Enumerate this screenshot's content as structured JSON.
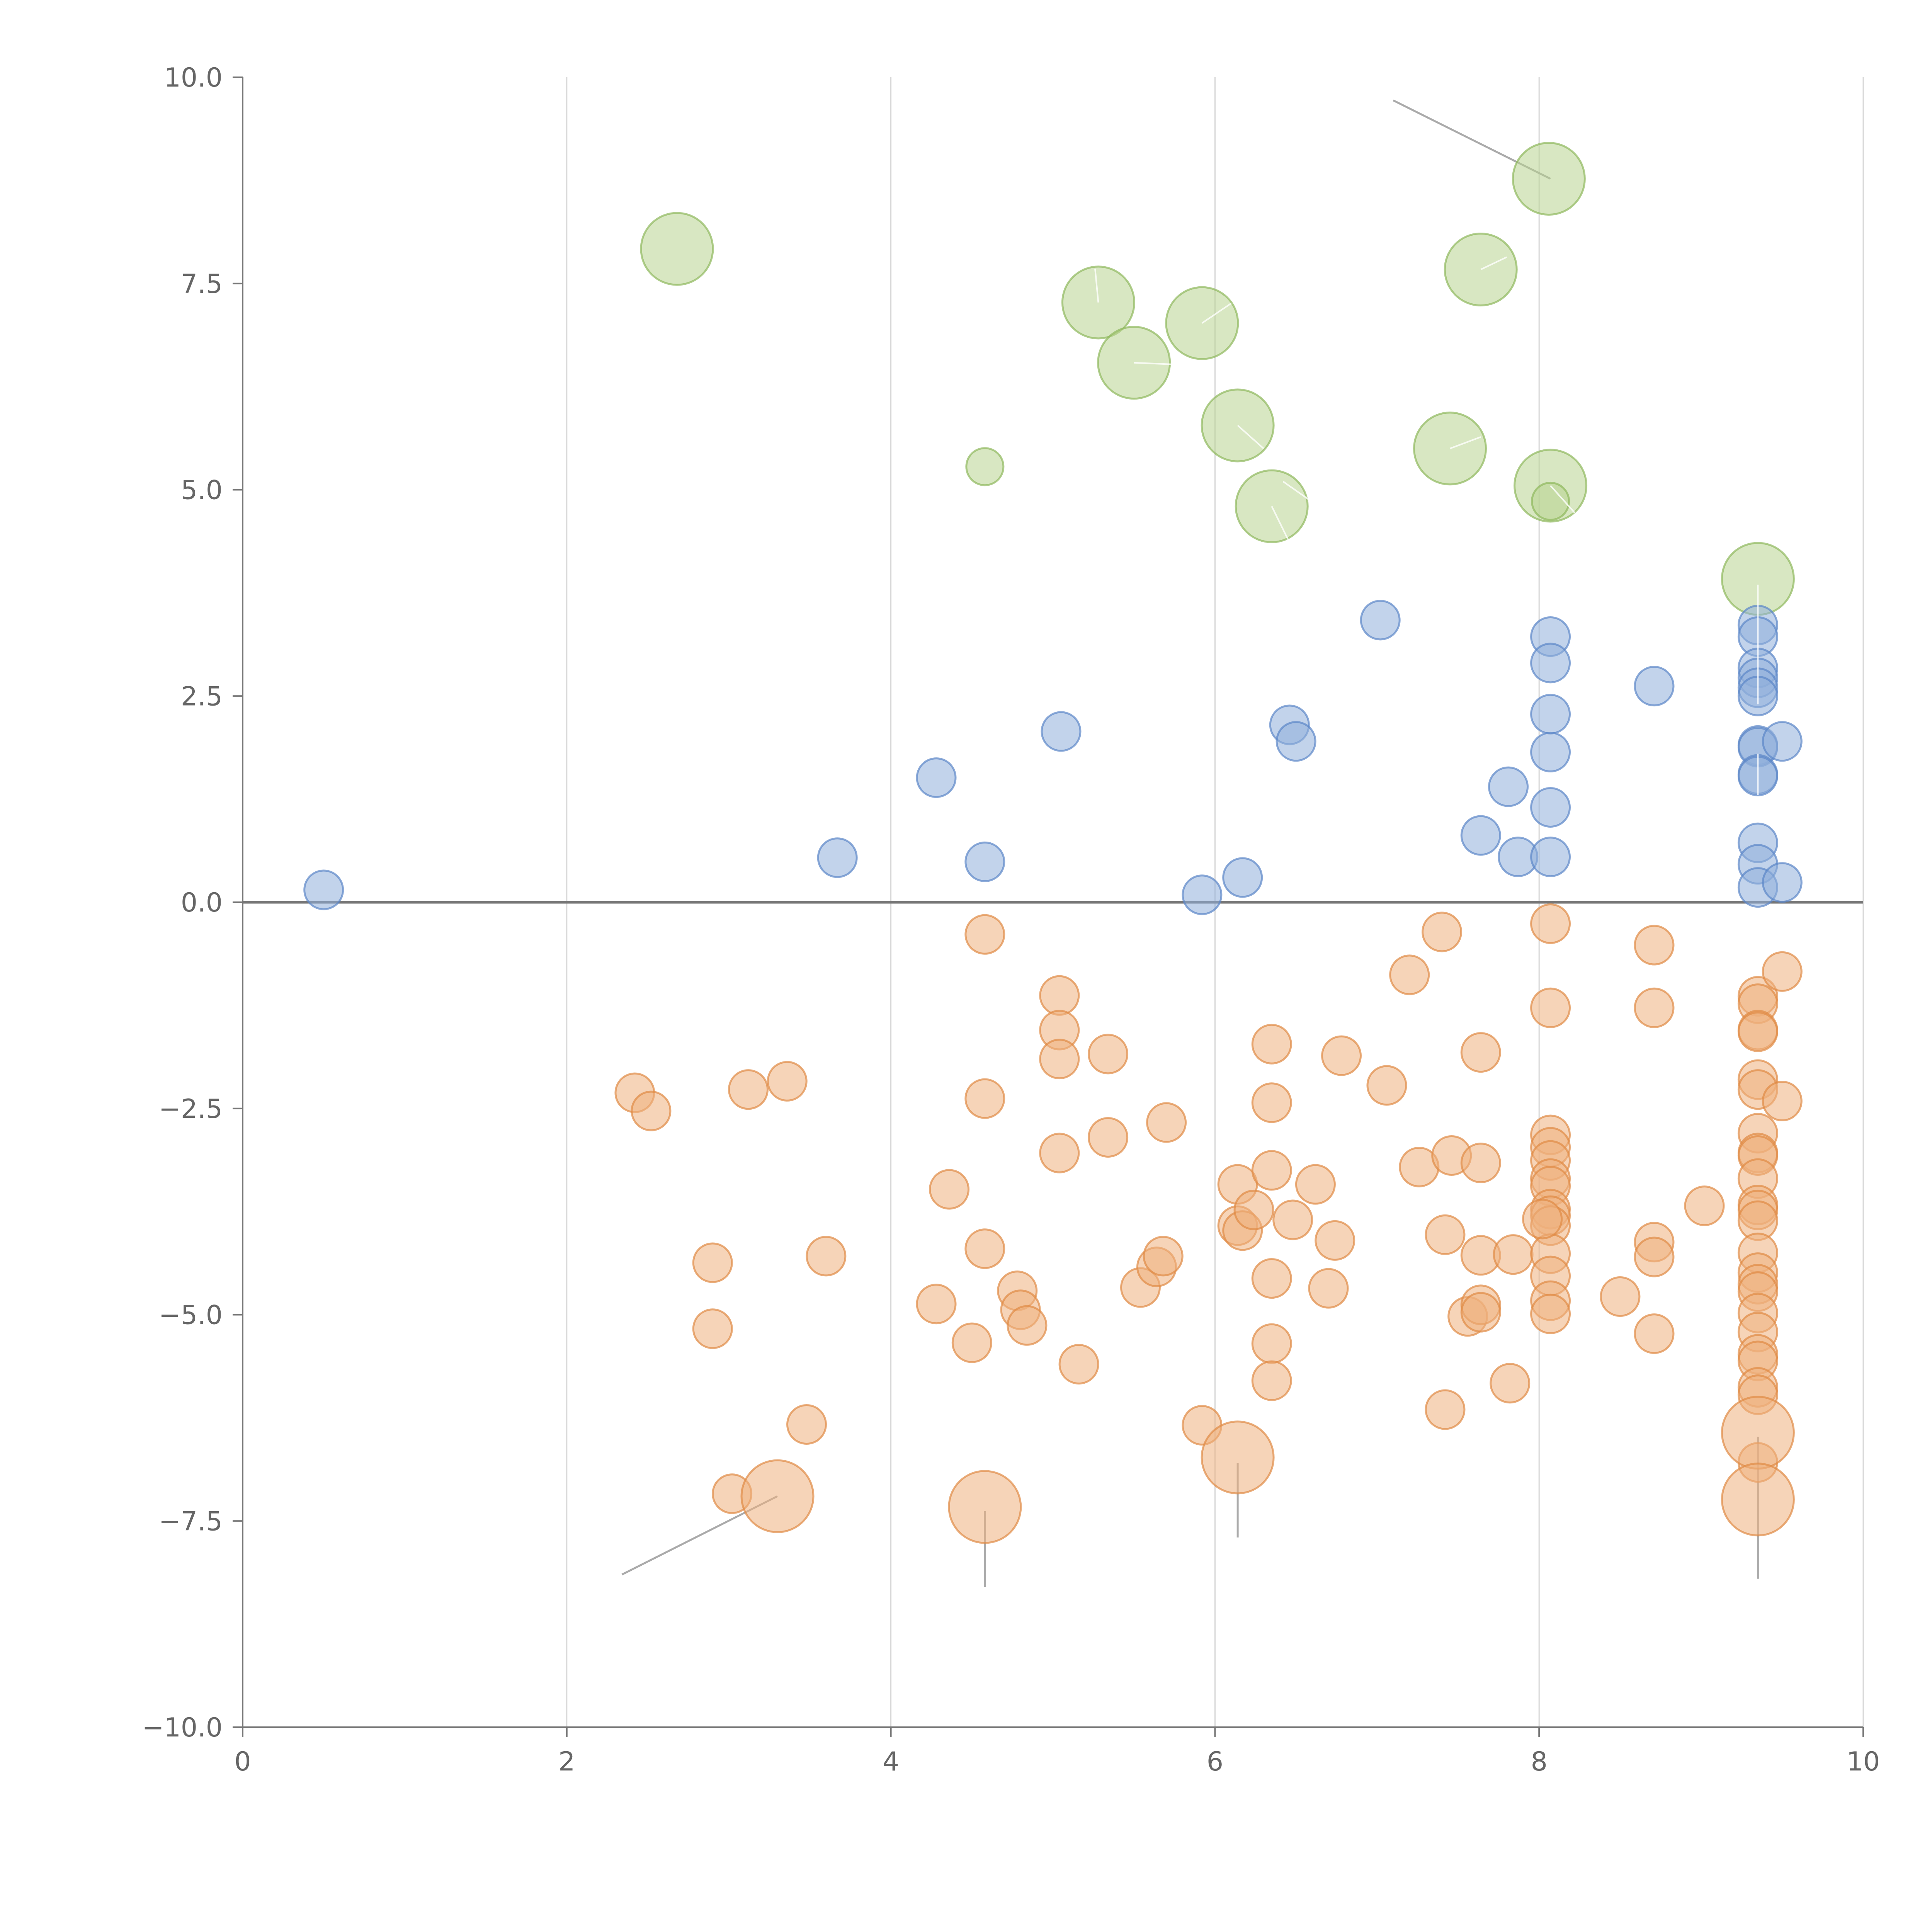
{
  "chart_data": {
    "type": "scatter",
    "title": "",
    "xlabel": "",
    "ylabel": "",
    "xlim": [
      0,
      10
    ],
    "ylim": [
      -10,
      10
    ],
    "x_ticks": [
      "0",
      "2",
      "4",
      "6",
      "8",
      "10"
    ],
    "y_ticks": [
      "10.0",
      "7.5",
      "5.0",
      "2.5",
      "0.0",
      "−2.5",
      "−5.0",
      "−7.5",
      "−10.0"
    ],
    "x_tick_values": [
      0,
      2,
      4,
      6,
      8,
      10
    ],
    "y_tick_values": [
      10,
      7.5,
      5,
      2.5,
      0,
      -2.5,
      -5,
      -7.5,
      -10
    ],
    "grid": "vertical",
    "reference_line_y": 0,
    "colors": {
      "green": "#b8d48f",
      "green_stroke": "#8fb85c",
      "blue": "#8fafdb",
      "blue_stroke": "#5b86c7",
      "orange": "#eeb07d",
      "orange_stroke": "#e08a45"
    },
    "series": [
      {
        "color": "green",
        "points": [
          {
            "x": 2.68,
            "y": 7.92,
            "size": "large"
          },
          {
            "x": 8.06,
            "y": 8.77,
            "size": "large"
          },
          {
            "x": 7.64,
            "y": 7.67,
            "size": "large"
          },
          {
            "x": 5.28,
            "y": 7.27,
            "size": "large"
          },
          {
            "x": 5.92,
            "y": 7.02,
            "size": "large"
          },
          {
            "x": 5.5,
            "y": 6.54,
            "size": "large"
          },
          {
            "x": 6.14,
            "y": 5.78,
            "size": "large"
          },
          {
            "x": 7.45,
            "y": 5.5,
            "size": "large"
          },
          {
            "x": 8.07,
            "y": 5.05,
            "size": "large"
          },
          {
            "x": 6.35,
            "y": 4.8,
            "size": "large"
          },
          {
            "x": 9.35,
            "y": 3.92,
            "size": "large"
          },
          {
            "x": 4.58,
            "y": 5.28,
            "size": "small"
          },
          {
            "x": 8.07,
            "y": 4.86,
            "size": "small"
          }
        ]
      },
      {
        "color": "blue",
        "points": [
          {
            "x": 0.5,
            "y": 0.15
          },
          {
            "x": 3.67,
            "y": 0.54
          },
          {
            "x": 4.28,
            "y": 1.51
          },
          {
            "x": 4.58,
            "y": 0.49
          },
          {
            "x": 5.05,
            "y": 2.07
          },
          {
            "x": 5.92,
            "y": 0.09
          },
          {
            "x": 6.17,
            "y": 0.3
          },
          {
            "x": 6.46,
            "y": 2.15
          },
          {
            "x": 6.5,
            "y": 1.95
          },
          {
            "x": 7.02,
            "y": 3.42
          },
          {
            "x": 7.64,
            "y": 0.81
          },
          {
            "x": 7.81,
            "y": 1.4
          },
          {
            "x": 7.87,
            "y": 0.55
          },
          {
            "x": 8.07,
            "y": 3.22
          },
          {
            "x": 8.07,
            "y": 2.9
          },
          {
            "x": 8.07,
            "y": 2.28
          },
          {
            "x": 8.07,
            "y": 1.82
          },
          {
            "x": 8.07,
            "y": 1.15
          },
          {
            "x": 8.07,
            "y": 0.55
          },
          {
            "x": 8.71,
            "y": 2.62
          },
          {
            "x": 9.35,
            "y": 3.36
          },
          {
            "x": 9.35,
            "y": 3.22
          },
          {
            "x": 9.35,
            "y": 2.84
          },
          {
            "x": 9.35,
            "y": 2.72
          },
          {
            "x": 9.35,
            "y": 2.6
          },
          {
            "x": 9.35,
            "y": 2.5
          },
          {
            "x": 9.35,
            "y": 1.9
          },
          {
            "x": 9.35,
            "y": 1.88
          },
          {
            "x": 9.35,
            "y": 1.55
          },
          {
            "x": 9.35,
            "y": 1.53
          },
          {
            "x": 9.35,
            "y": 0.72
          },
          {
            "x": 9.35,
            "y": 0.46
          },
          {
            "x": 9.35,
            "y": 0.18
          },
          {
            "x": 9.5,
            "y": 1.95
          },
          {
            "x": 9.5,
            "y": 0.24
          }
        ]
      },
      {
        "color": "orange",
        "points": [
          {
            "x": 2.42,
            "y": -2.31
          },
          {
            "x": 2.52,
            "y": -2.53
          },
          {
            "x": 2.9,
            "y": -4.37
          },
          {
            "x": 2.9,
            "y": -5.17
          },
          {
            "x": 3.02,
            "y": -7.17
          },
          {
            "x": 3.12,
            "y": -2.27
          },
          {
            "x": 3.36,
            "y": -2.17
          },
          {
            "x": 3.48,
            "y": -6.33
          },
          {
            "x": 3.6,
            "y": -4.29
          },
          {
            "x": 4.28,
            "y": -4.87
          },
          {
            "x": 4.36,
            "y": -3.48
          },
          {
            "x": 4.5,
            "y": -5.34
          },
          {
            "x": 4.58,
            "y": -0.39
          },
          {
            "x": 4.58,
            "y": -2.38
          },
          {
            "x": 4.58,
            "y": -4.2
          },
          {
            "x": 4.78,
            "y": -4.71
          },
          {
            "x": 4.8,
            "y": -4.94
          },
          {
            "x": 4.84,
            "y": -5.13
          },
          {
            "x": 5.04,
            "y": -1.13
          },
          {
            "x": 5.04,
            "y": -1.55
          },
          {
            "x": 5.04,
            "y": -1.9
          },
          {
            "x": 5.04,
            "y": -3.04
          },
          {
            "x": 5.16,
            "y": -5.6
          },
          {
            "x": 5.34,
            "y": -1.84
          },
          {
            "x": 5.34,
            "y": -2.85
          },
          {
            "x": 5.54,
            "y": -4.67
          },
          {
            "x": 5.64,
            "y": -4.42
          },
          {
            "x": 5.68,
            "y": -4.29
          },
          {
            "x": 5.7,
            "y": -2.67
          },
          {
            "x": 5.92,
            "y": -6.34
          },
          {
            "x": 6.14,
            "y": -3.42
          },
          {
            "x": 6.14,
            "y": -3.92
          },
          {
            "x": 6.17,
            "y": -3.98
          },
          {
            "x": 6.24,
            "y": -3.73
          },
          {
            "x": 6.35,
            "y": -1.72
          },
          {
            "x": 6.35,
            "y": -2.43
          },
          {
            "x": 6.35,
            "y": -3.25
          },
          {
            "x": 6.35,
            "y": -4.56
          },
          {
            "x": 6.35,
            "y": -5.35
          },
          {
            "x": 6.35,
            "y": -5.8
          },
          {
            "x": 6.48,
            "y": -3.85
          },
          {
            "x": 6.62,
            "y": -3.42
          },
          {
            "x": 6.7,
            "y": -4.68
          },
          {
            "x": 6.74,
            "y": -4.1
          },
          {
            "x": 6.78,
            "y": -1.86
          },
          {
            "x": 7.06,
            "y": -2.22
          },
          {
            "x": 7.2,
            "y": -0.88
          },
          {
            "x": 7.26,
            "y": -3.21
          },
          {
            "x": 7.4,
            "y": -0.36
          },
          {
            "x": 7.42,
            "y": -4.03
          },
          {
            "x": 7.42,
            "y": -6.15
          },
          {
            "x": 7.46,
            "y": -3.07
          },
          {
            "x": 7.56,
            "y": -5.02
          },
          {
            "x": 7.64,
            "y": -1.82
          },
          {
            "x": 7.64,
            "y": -3.16
          },
          {
            "x": 7.64,
            "y": -4.28
          },
          {
            "x": 7.64,
            "y": -4.88
          },
          {
            "x": 7.64,
            "y": -4.97
          },
          {
            "x": 7.82,
            "y": -5.83
          },
          {
            "x": 7.84,
            "y": -4.27
          },
          {
            "x": 8.07,
            "y": -0.26
          },
          {
            "x": 8.07,
            "y": -1.28
          },
          {
            "x": 8.07,
            "y": -2.82
          },
          {
            "x": 8.07,
            "y": -2.97
          },
          {
            "x": 8.07,
            "y": -3.13
          },
          {
            "x": 8.07,
            "y": -3.35
          },
          {
            "x": 8.07,
            "y": -3.44
          },
          {
            "x": 8.07,
            "y": -3.72
          },
          {
            "x": 8.07,
            "y": -3.8
          },
          {
            "x": 8.07,
            "y": -3.92
          },
          {
            "x": 8.07,
            "y": -4.26
          },
          {
            "x": 8.07,
            "y": -4.53
          },
          {
            "x": 8.07,
            "y": -4.83
          },
          {
            "x": 8.07,
            "y": -4.99
          },
          {
            "x": 8.02,
            "y": -3.84
          },
          {
            "x": 8.5,
            "y": -4.78
          },
          {
            "x": 8.71,
            "y": -0.52
          },
          {
            "x": 8.71,
            "y": -1.28
          },
          {
            "x": 8.71,
            "y": -4.12
          },
          {
            "x": 8.71,
            "y": -4.3
          },
          {
            "x": 8.71,
            "y": -5.23
          },
          {
            "x": 9.02,
            "y": -3.68
          },
          {
            "x": 9.35,
            "y": -1.14
          },
          {
            "x": 9.35,
            "y": -1.23
          },
          {
            "x": 9.35,
            "y": -1.55
          },
          {
            "x": 9.35,
            "y": -1.57
          },
          {
            "x": 9.35,
            "y": -2.15
          },
          {
            "x": 9.35,
            "y": -2.27
          },
          {
            "x": 9.35,
            "y": -2.8
          },
          {
            "x": 9.35,
            "y": -3.04
          },
          {
            "x": 9.35,
            "y": -3.07
          },
          {
            "x": 9.35,
            "y": -3.35
          },
          {
            "x": 9.35,
            "y": -3.67
          },
          {
            "x": 9.35,
            "y": -3.73
          },
          {
            "x": 9.35,
            "y": -3.86
          },
          {
            "x": 9.35,
            "y": -4.25
          },
          {
            "x": 9.35,
            "y": -4.49
          },
          {
            "x": 9.35,
            "y": -4.63
          },
          {
            "x": 9.35,
            "y": -4.72
          },
          {
            "x": 9.35,
            "y": -4.98
          },
          {
            "x": 9.35,
            "y": -5.21
          },
          {
            "x": 9.35,
            "y": -5.48
          },
          {
            "x": 9.35,
            "y": -5.56
          },
          {
            "x": 9.35,
            "y": -5.88
          },
          {
            "x": 9.35,
            "y": -5.97
          },
          {
            "x": 9.35,
            "y": -6.79
          },
          {
            "x": 9.5,
            "y": -0.84
          },
          {
            "x": 9.5,
            "y": -2.41
          },
          {
            "x": 3.3,
            "y": -7.2,
            "size": "large"
          },
          {
            "x": 4.58,
            "y": -7.33,
            "size": "large"
          },
          {
            "x": 6.14,
            "y": -6.73,
            "size": "large"
          },
          {
            "x": 9.35,
            "y": -6.43,
            "size": "large"
          },
          {
            "x": 9.35,
            "y": -7.24,
            "size": "large"
          }
        ]
      }
    ],
    "leader_lines": [
      {
        "x1": 7.1,
        "y1": 9.72,
        "x2": 8.07,
        "y2": 8.77,
        "color": "gray"
      },
      {
        "x1": 2.34,
        "y1": -8.15,
        "x2": 3.3,
        "y2": -7.2,
        "color": "gray"
      },
      {
        "x1": 4.58,
        "y1": -7.38,
        "x2": 4.58,
        "y2": -8.3,
        "color": "gray"
      },
      {
        "x1": 6.14,
        "y1": -6.8,
        "x2": 6.14,
        "y2": -7.7,
        "color": "gray"
      },
      {
        "x1": 9.35,
        "y1": -6.48,
        "x2": 9.35,
        "y2": -8.2,
        "color": "gray"
      },
      {
        "x1": 5.28,
        "y1": 7.27,
        "x2": 5.26,
        "y2": 7.68,
        "color": "white"
      },
      {
        "x1": 7.64,
        "y1": 7.67,
        "x2": 7.8,
        "y2": 7.82,
        "color": "white"
      },
      {
        "x1": 5.92,
        "y1": 7.02,
        "x2": 6.1,
        "y2": 7.26,
        "color": "white"
      },
      {
        "x1": 5.5,
        "y1": 6.54,
        "x2": 5.74,
        "y2": 6.52,
        "color": "white"
      },
      {
        "x1": 6.14,
        "y1": 5.78,
        "x2": 6.3,
        "y2": 5.5,
        "color": "white"
      },
      {
        "x1": 7.45,
        "y1": 5.5,
        "x2": 7.64,
        "y2": 5.64,
        "color": "white"
      },
      {
        "x1": 8.07,
        "y1": 5.05,
        "x2": 8.22,
        "y2": 4.72,
        "color": "white"
      },
      {
        "x1": 6.35,
        "y1": 4.8,
        "x2": 6.45,
        "y2": 4.4,
        "color": "white"
      },
      {
        "x1": 6.42,
        "y1": 5.1,
        "x2": 6.58,
        "y2": 4.88,
        "color": "white"
      },
      {
        "x1": 9.35,
        "y1": 3.85,
        "x2": 9.35,
        "y2": 2.4,
        "color": "white"
      },
      {
        "x1": 9.35,
        "y1": 1.8,
        "x2": 9.35,
        "y2": 1.3,
        "color": "white"
      }
    ]
  }
}
